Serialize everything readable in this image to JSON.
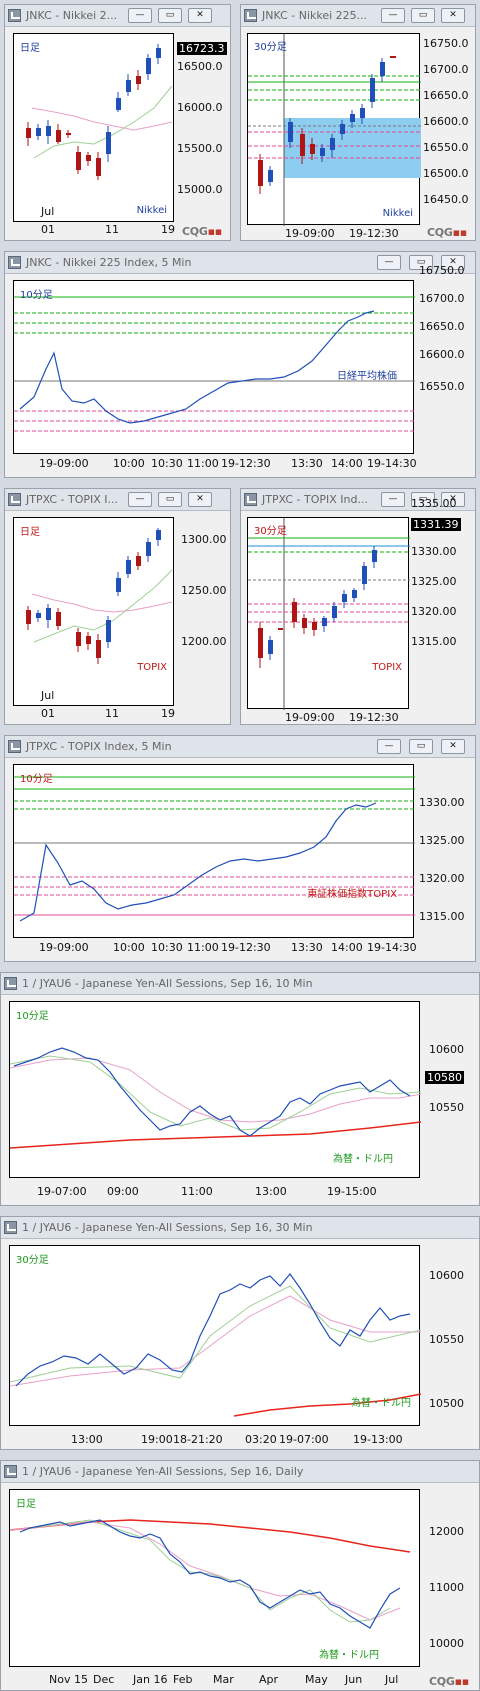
{
  "colors": {
    "up": "#1f4fb8",
    "down": "#b01515",
    "ma_fast": "#9ecf94",
    "ma_slow": "#e8a0c8",
    "ma_long": "#e8241c",
    "green": "#10b010",
    "pink": "#e0489a",
    "gray": "#777777"
  },
  "window_buttons": {
    "minimize": "—",
    "restore": "▭",
    "close": "✕"
  },
  "logo": {
    "prefix": "CQG",
    "suffix": "▪▪"
  },
  "charts": [
    {
      "id": "c1",
      "title": "JNKC - Nikkei 2...",
      "period": "日足",
      "name": "Nikkei",
      "price_tag": "16723.3",
      "y_ticks": [
        "16500.0",
        "16000.0",
        "15500.0",
        "15000.0"
      ],
      "x_ticks": [
        "01",
        "11",
        "19"
      ],
      "month": "Jul"
    },
    {
      "id": "c2",
      "title": "JNKC - Nikkei 225...",
      "period": "30分足",
      "name": "Nikkei",
      "y_ticks": [
        "16750.0",
        "16700.0",
        "16650.0",
        "16600.0",
        "16550.0",
        "16500.0",
        "16450.0"
      ],
      "x_ticks": [
        "19-09:00",
        "19-12:30"
      ]
    },
    {
      "id": "c3",
      "title": "JNKC - Nikkei 225 Index, 5 Min",
      "period": "10分足",
      "name": "日経平均株価",
      "y_ticks": [
        "16750.0",
        "16700.0",
        "16650.0",
        "16600.0",
        "16550.0"
      ],
      "x_ticks": [
        "19-09:00",
        "10:00",
        "10:30",
        "11:00",
        "19-12:30",
        "13:30",
        "14:00",
        "19-14:30"
      ]
    },
    {
      "id": "c4",
      "title": "JTPXC - TOPIX I...",
      "period": "日足",
      "name": "TOPIX",
      "y_ticks": [
        "1300.00",
        "1250.00",
        "1200.00"
      ],
      "x_ticks": [
        "01",
        "11",
        "19"
      ],
      "month": "Jul"
    },
    {
      "id": "c5",
      "title": "JTPXC - TOPIX Ind...",
      "period": "30分足",
      "name": "TOPIX",
      "price_tag": "1331.39",
      "y_ticks": [
        "1335.00",
        "1330.00",
        "1325.00",
        "1320.00",
        "1315.00"
      ],
      "x_ticks": [
        "19-09:00",
        "19-12:30"
      ]
    },
    {
      "id": "c6",
      "title": "JTPXC - TOPIX Index, 5 Min",
      "period": "10分足",
      "name": "東証株価指数TOPIX",
      "y_ticks": [
        "1330.00",
        "1325.00",
        "1320.00",
        "1315.00"
      ],
      "x_ticks": [
        "19-09:00",
        "10:00",
        "10:30",
        "11:00",
        "19-12:30",
        "13:30",
        "14:00",
        "19-14:30"
      ]
    },
    {
      "id": "c7",
      "title": "1 / JYAU6 - Japanese Yen-All Sessions, Sep 16, 10 Min",
      "period": "10分足",
      "name": "為替・ドル円",
      "price_tag": "10580",
      "y_ticks": [
        "10600",
        "10550"
      ],
      "x_ticks": [
        "19-07:00",
        "09:00",
        "11:00",
        "13:00",
        "19-15:00"
      ]
    },
    {
      "id": "c8",
      "title": "1 / JYAU6 - Japanese Yen-All Sessions, Sep 16, 30 Min",
      "period": "30分足",
      "name": "為替・ドル円",
      "y_ticks": [
        "10600",
        "10550",
        "10500"
      ],
      "x_ticks": [
        "13:00",
        "19:00",
        "18-21:20",
        "03:20",
        "19-07:00",
        "19-13:00"
      ]
    },
    {
      "id": "c9",
      "title": "1 / JYAU6 - Japanese Yen-All Sessions, Sep 16, Daily",
      "period": "日足",
      "name": "為替・ドル円",
      "y_ticks": [
        "12000",
        "11000",
        "10000"
      ],
      "x_ticks": [
        "Nov 15",
        "Dec",
        "Jan 16",
        "Feb",
        "Mar",
        "Apr",
        "May",
        "Jun",
        "Jul"
      ]
    }
  ]
}
